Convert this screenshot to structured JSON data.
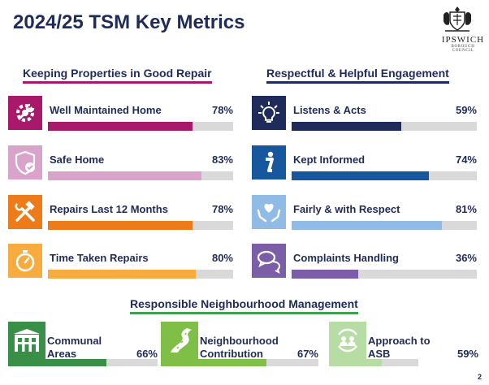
{
  "title": "2024/25 TSM Key Metrics",
  "logo": {
    "name": "IPSWICH",
    "sub": "BOROUGH COUNCIL"
  },
  "sections": {
    "left": "Keeping Properties in Good Repair",
    "right": "Respectful & Helpful Engagement",
    "bottom": "Responsible Neighbourhood Management"
  },
  "metrics": [
    {
      "label": "Well Maintained Home",
      "pct": "78%",
      "value": 78,
      "icon": "gear-wrench-icon",
      "color": "#a8186b"
    },
    {
      "label": "Safe Home",
      "pct": "83%",
      "value": 83,
      "icon": "shield-check-icon",
      "color": "#d9a3cc"
    },
    {
      "label": "Repairs Last 12 Months",
      "pct": "78%",
      "value": 78,
      "icon": "hammer-wrench-icon",
      "color": "#ee7b19"
    },
    {
      "label": "Time Taken Repairs",
      "pct": "80%",
      "value": 80,
      "icon": "stopwatch-icon",
      "color": "#f8ab3f"
    },
    {
      "label": "Listens & Acts",
      "pct": "59%",
      "value": 59,
      "icon": "lightbulb-icon",
      "color": "#1f2b5a"
    },
    {
      "label": "Kept Informed",
      "pct": "74%",
      "value": 74,
      "icon": "info-icon",
      "color": "#16579e"
    },
    {
      "label": "Fairly & with Respect",
      "pct": "81%",
      "value": 81,
      "icon": "heart-hands-icon",
      "color": "#8fbbe6"
    },
    {
      "label": "Complaints Handling",
      "pct": "36%",
      "value": 36,
      "icon": "speech-bubbles-icon",
      "color": "#7b5ea7"
    }
  ],
  "bottom_metrics": [
    {
      "label": "Communal Areas",
      "pct": "66%",
      "value": 66,
      "icon": "building-icon",
      "color": "#3a8f48"
    },
    {
      "label": "Neighbourhood Contribution",
      "pct": "67%",
      "value": 67,
      "icon": "road-icon",
      "color": "#7fbf47"
    },
    {
      "label": "Approach to ASB",
      "pct": "59%",
      "value": 59,
      "icon": "community-icon",
      "color": "#b7dda5"
    }
  ],
  "page_number": "2"
}
